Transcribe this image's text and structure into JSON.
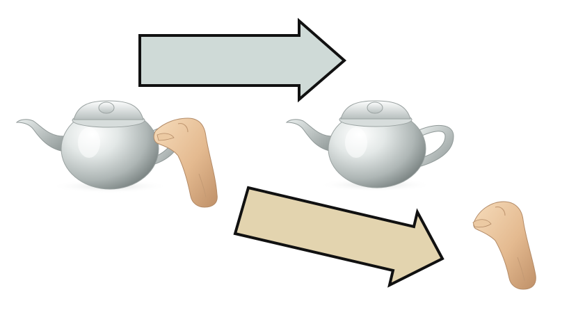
{
  "figure": {
    "background": "#ffffff",
    "arrows": [
      {
        "name": "teapot-arrow",
        "fill": "#cfdad7",
        "stroke": "#111111"
      },
      {
        "name": "hand-arrow",
        "fill": "#e3d4af",
        "stroke": "#111111"
      }
    ],
    "colors": {
      "teapot_light": "#f4f6f6",
      "teapot_mid": "#bcc3c2",
      "teapot_dark": "#7f8786",
      "skin_light": "#f4d8b4",
      "skin_mid": "#e2b78c",
      "skin_dark": "#b98a63"
    },
    "icons": [
      "teapot-icon",
      "hand-icon",
      "arrow-right-icon"
    ]
  }
}
